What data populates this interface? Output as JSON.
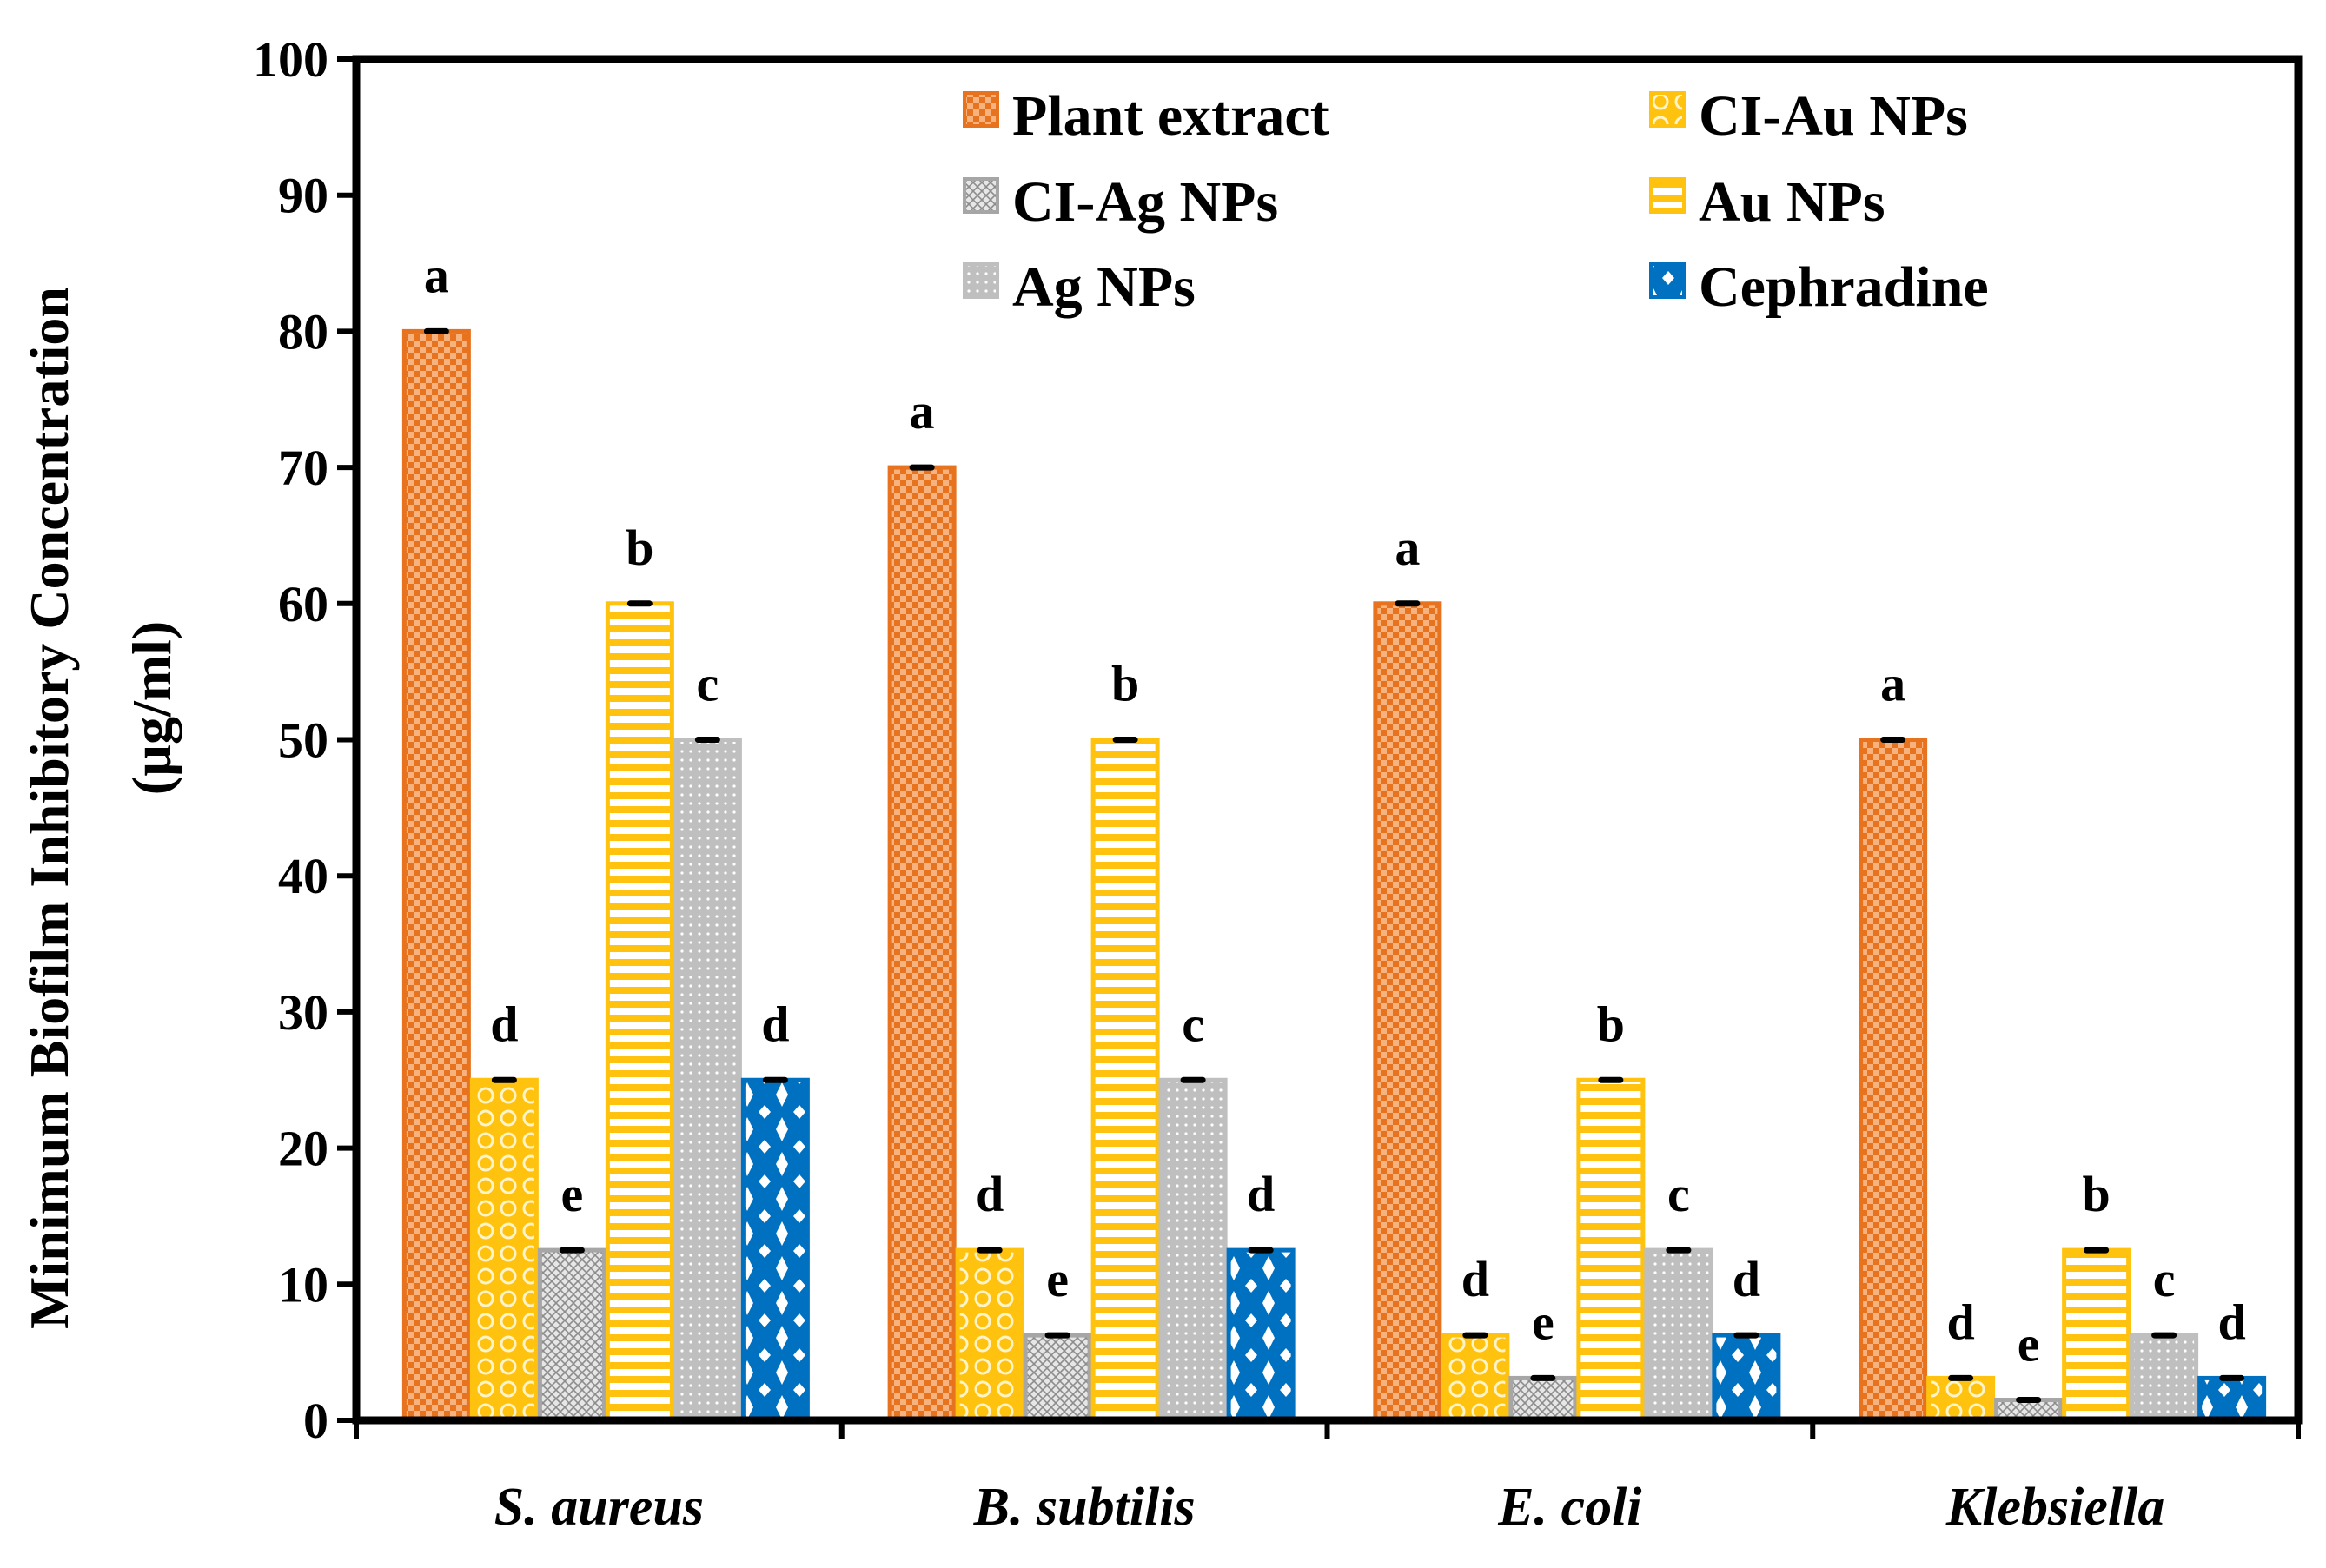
{
  "chart_data": {
    "type": "bar",
    "title": "",
    "xlabel": "",
    "ylabel": "Minimum Biofilm Inhibitory Concentration",
    "ylabel_units": "(µg/ml)",
    "ylim": [
      0,
      100
    ],
    "yticks": [
      0,
      10,
      20,
      30,
      40,
      50,
      60,
      70,
      80,
      90,
      100
    ],
    "grid": false,
    "legend_position": "top-right",
    "categories": [
      "S. aureus",
      "B. subtilis",
      "E. coli",
      "Klebsiella"
    ],
    "series": [
      {
        "name": "Plant extract",
        "values": [
          80,
          70,
          60,
          50
        ],
        "letters": [
          "a",
          "a",
          "a",
          "a"
        ],
        "color": "#E8731F",
        "pattern": "checker"
      },
      {
        "name": "CI-Au NPs",
        "values": [
          25,
          12.5,
          6.25,
          3.1
        ],
        "letters": [
          "d",
          "d",
          "d",
          "d"
        ],
        "color": "#FFC20E",
        "pattern": "circles"
      },
      {
        "name": "CI-Ag NPs",
        "values": [
          12.5,
          6.25,
          3.1,
          1.5
        ],
        "letters": [
          "e",
          "e",
          "e",
          "e"
        ],
        "color": "#A6A6A6",
        "pattern": "crosshatch"
      },
      {
        "name": "Au NPs",
        "values": [
          60,
          50,
          25,
          12.5
        ],
        "letters": [
          "b",
          "b",
          "b",
          "b"
        ],
        "color": "#FFC20E",
        "pattern": "hstripes"
      },
      {
        "name": "Ag NPs",
        "values": [
          50,
          25,
          12.5,
          6.25
        ],
        "letters": [
          "c",
          "c",
          "c",
          "c"
        ],
        "color": "#BFBFBF",
        "pattern": "dots"
      },
      {
        "name": "Cephradine",
        "values": [
          25,
          12.5,
          6.25,
          3.1
        ],
        "letters": [
          "d",
          "d",
          "d",
          "d"
        ],
        "color": "#0070C0",
        "pattern": "diamonds"
      }
    ]
  }
}
